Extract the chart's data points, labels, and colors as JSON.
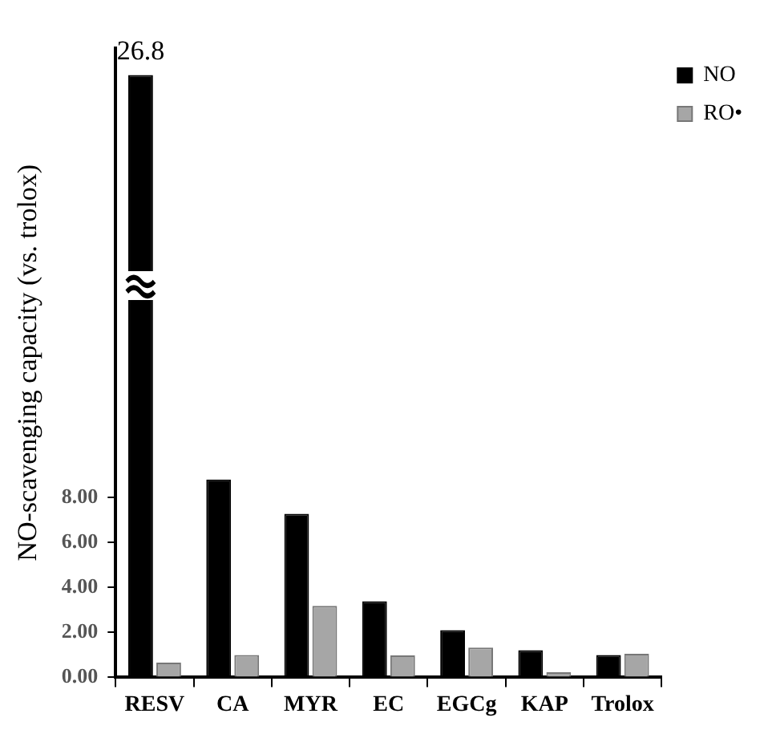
{
  "chart_data": {
    "type": "bar",
    "ylabel": "NO-scavenging capacity (vs. trolox)",
    "categories": [
      "RESV",
      "CA",
      "MYR",
      "EC",
      "EGCg",
      "KAP",
      "Trolox"
    ],
    "series": [
      {
        "name": "NO",
        "color": "#000000",
        "values": [
          26.8,
          8.8,
          7.28,
          3.39,
          2.1,
          1.21,
          1.0
        ],
        "value_labels": [
          "26.8",
          null,
          null,
          null,
          null,
          null,
          null
        ]
      },
      {
        "name": "RO•",
        "color": "#a6a6a6",
        "values": [
          0.66,
          1.0,
          3.18,
          0.98,
          1.33,
          0.23,
          1.05
        ]
      }
    ],
    "ylim": [
      0,
      28
    ],
    "yticks": [
      {
        "value": 0,
        "label": "0.00"
      },
      {
        "value": 2,
        "label": "2.00"
      },
      {
        "value": 4,
        "label": "4.00"
      },
      {
        "value": 6,
        "label": "6.00"
      },
      {
        "value": 8,
        "label": "8.00"
      }
    ],
    "grid": false,
    "legend": "right"
  }
}
